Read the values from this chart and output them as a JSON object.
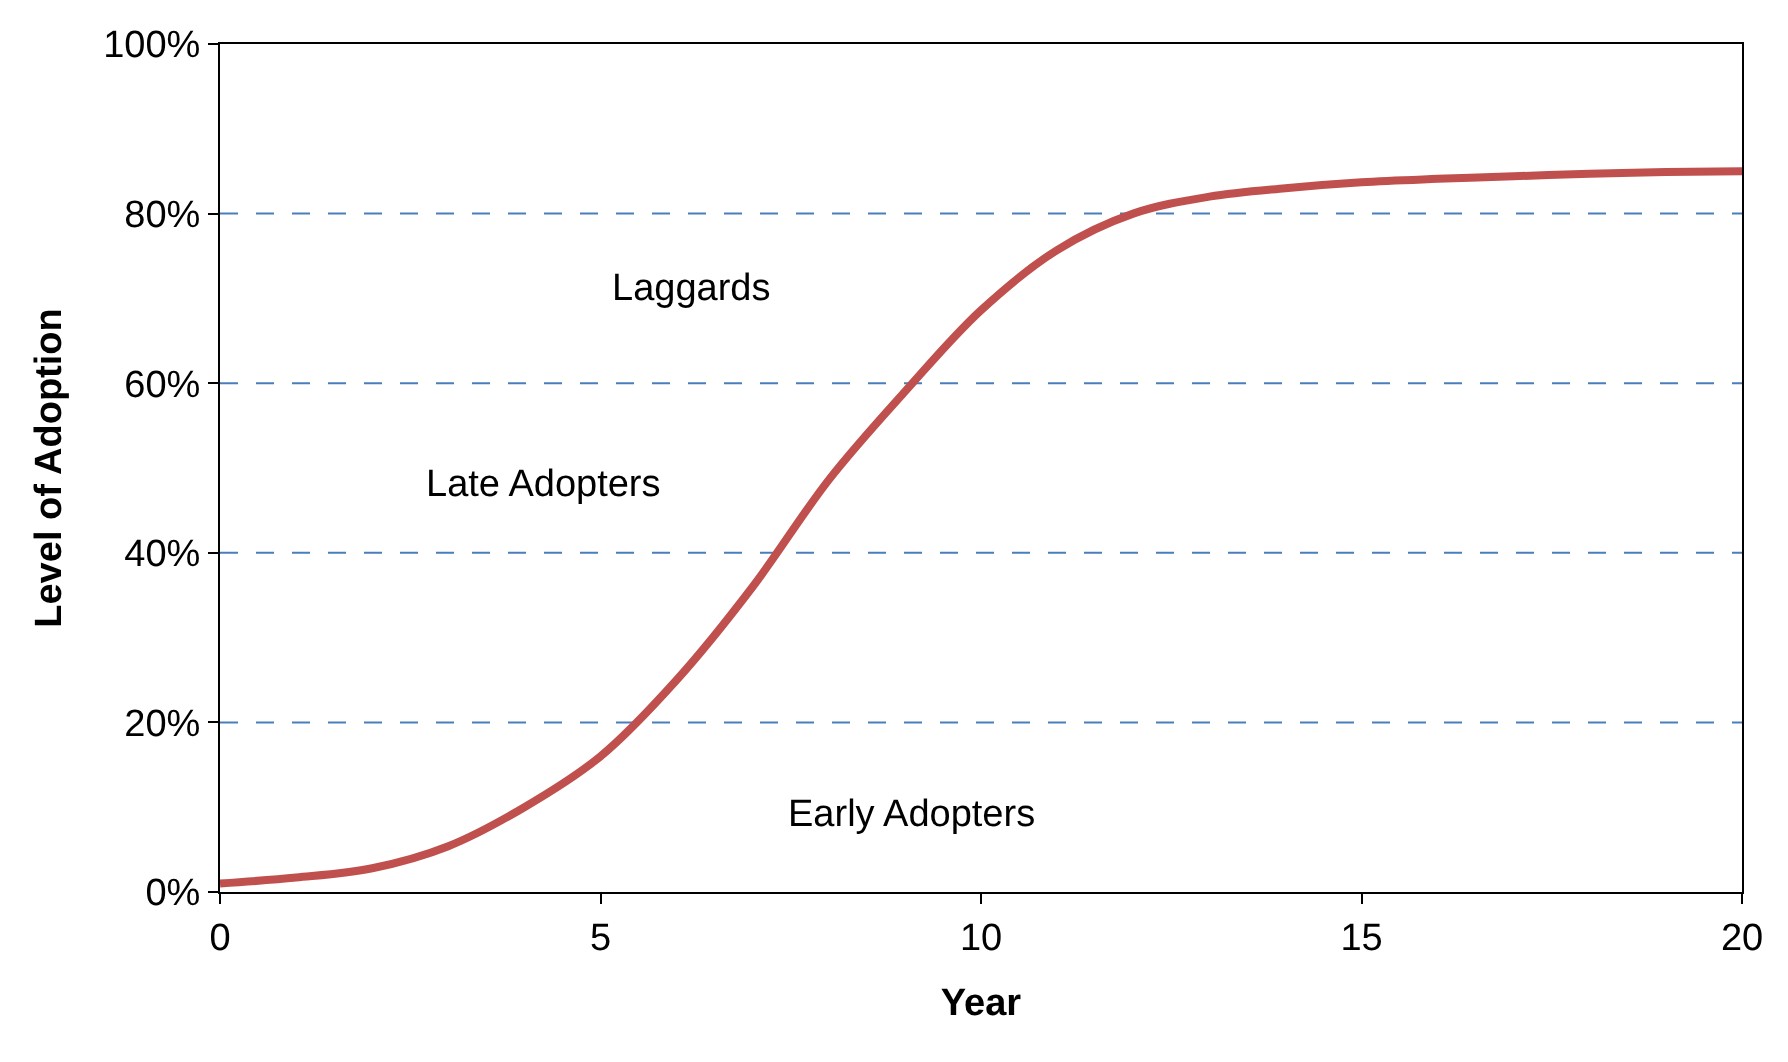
{
  "chart_data": {
    "type": "line",
    "xlabel": "Year",
    "ylabel": "Level of Adoption",
    "x": [
      0,
      1,
      2,
      3,
      4,
      5,
      6,
      7,
      8,
      9,
      10,
      11,
      12,
      13,
      14,
      15,
      16,
      17,
      18,
      19,
      20
    ],
    "series": [
      {
        "color": "#c0504d",
        "values": [
          1,
          1.7,
          2.8,
          5.4,
          10,
          16,
          25,
          36,
          48.6,
          59,
          68.6,
          75.7,
          80,
          82,
          83,
          83.7,
          84.1,
          84.4,
          84.7,
          84.9,
          85
        ]
      }
    ],
    "xlim": [
      0,
      20
    ],
    "xticks": [
      0,
      5,
      10,
      15,
      20
    ],
    "ylim": [
      0,
      100
    ],
    "yticks": [
      {
        "value": 0,
        "label": "0%"
      },
      {
        "value": 20,
        "label": "20%"
      },
      {
        "value": 40,
        "label": "40%"
      },
      {
        "value": 60,
        "label": "60%"
      },
      {
        "value": 80,
        "label": "80%"
      },
      {
        "value": 100,
        "label": "100%"
      }
    ],
    "ref_lines": [
      {
        "axis": "y",
        "value": 20,
        "color": "#4a7ebb",
        "line_style": "dashed"
      },
      {
        "axis": "y",
        "value": 40,
        "color": "#4a7ebb",
        "line_style": "dashed"
      },
      {
        "axis": "y",
        "value": 60,
        "color": "#4a7ebb",
        "line_style": "dashed"
      },
      {
        "axis": "y",
        "value": 80,
        "color": "#4a7ebb",
        "line_style": "dashed"
      }
    ],
    "annotations": [
      "Laggards",
      "Late Adopters",
      "Early Adopters"
    ],
    "grid": false,
    "marker": "none",
    "line_style": "solid"
  }
}
